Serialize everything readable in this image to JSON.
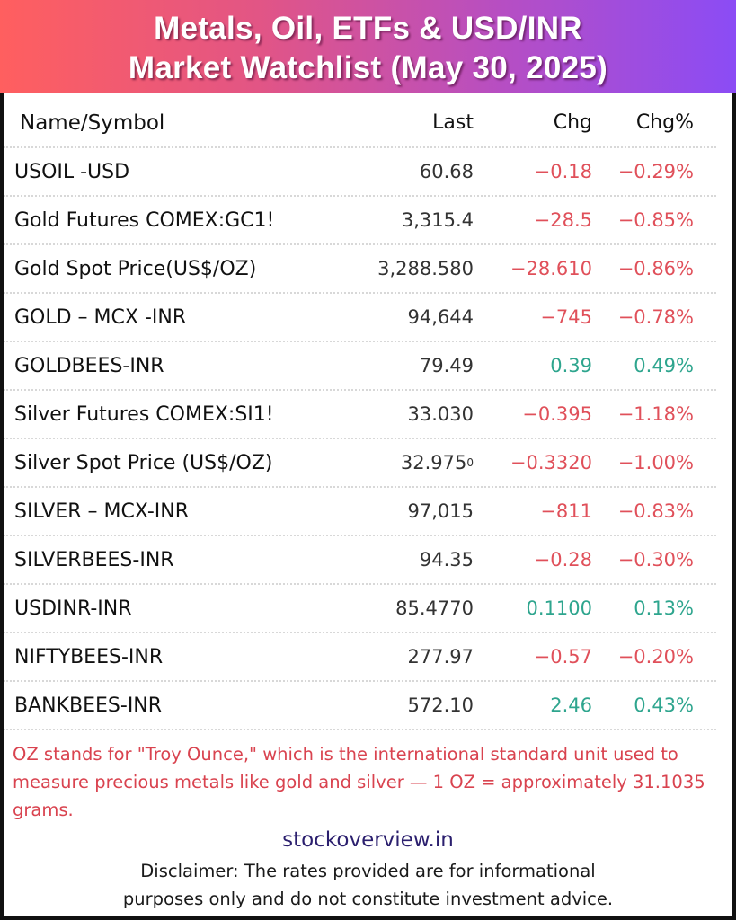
{
  "header": {
    "title_line1": "Metals, Oil, ETFs & USD/INR",
    "title_line2": "Market Watchlist (May 30, 2025)",
    "gradient_colors": [
      "#ff5f5f",
      "#e25585",
      "#b44ec6",
      "#8b4cf5"
    ]
  },
  "table": {
    "columns": [
      "Name/Symbol",
      "Last",
      "Chg",
      "Chg%"
    ],
    "rows": [
      {
        "name": "USOIL -USD",
        "last": "60.68",
        "chg": "−0.18",
        "pct": "−0.29%",
        "dir": "neg"
      },
      {
        "name": "Gold Futures COMEX:GC1!",
        "last": "3,315.4",
        "chg": "−28.5",
        "pct": "−0.85%",
        "dir": "neg"
      },
      {
        "name": "Gold Spot Price(US$/OZ)",
        "last": "3,288.580",
        "chg": "−28.610",
        "pct": "−0.86%",
        "dir": "neg"
      },
      {
        "name": "GOLD – MCX -INR",
        "last": "94,644",
        "chg": "−745",
        "pct": "−0.78%",
        "dir": "neg"
      },
      {
        "name": "GOLDBEES-INR",
        "last": "79.49",
        "chg": "0.39",
        "pct": "0.49%",
        "dir": "pos"
      },
      {
        "name": "Silver Futures COMEX:SI1!",
        "last": "33.030",
        "chg": "−0.395",
        "pct": "−1.18%",
        "dir": "neg"
      },
      {
        "name": "Silver Spot Price (US$/OZ)",
        "last": "32.975",
        "last_sup": "0",
        "chg": "−0.3320",
        "pct": "−1.00%",
        "dir": "neg"
      },
      {
        "name": "SILVER – MCX-INR",
        "last": "97,015",
        "chg": "−811",
        "pct": "−0.83%",
        "dir": "neg"
      },
      {
        "name": "SILVERBEES-INR",
        "last": "94.35",
        "chg": "−0.28",
        "pct": "−0.30%",
        "dir": "neg"
      },
      {
        "name": "USDINR-INR",
        "last": "85.4770",
        "chg": "0.1100",
        "pct": "0.13%",
        "dir": "pos"
      },
      {
        "name": "NIFTYBEES-INR",
        "last": "277.97",
        "chg": "−0.57",
        "pct": "−0.20%",
        "dir": "neg"
      },
      {
        "name": "BANKBEES-INR",
        "last": "572.10",
        "chg": "2.46",
        "pct": "0.43%",
        "dir": "pos"
      }
    ],
    "colors": {
      "negative": "#e0505a",
      "positive": "#2ea58e"
    }
  },
  "footer": {
    "note": "OZ stands for \"Troy Ounce,\" which is the international standard unit used to measure precious metals like gold and silver — 1 OZ = approximately 31.1035 grams.",
    "site": "stockoverview.in",
    "disclaimer_line1": "Disclaimer: The rates provided are for informational",
    "disclaimer_line2": "purposes only and do not constitute investment advice."
  }
}
